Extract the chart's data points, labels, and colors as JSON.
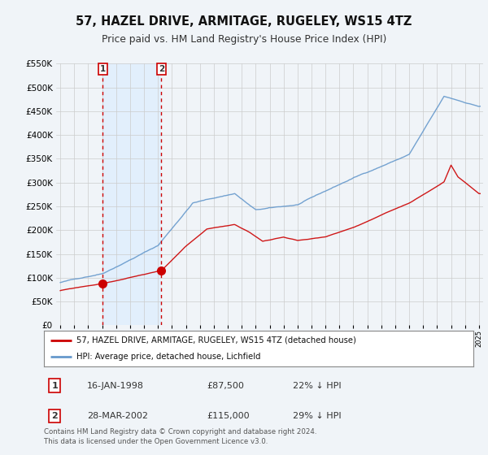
{
  "title": "57, HAZEL DRIVE, ARMITAGE, RUGELEY, WS15 4TZ",
  "subtitle": "Price paid vs. HM Land Registry's House Price Index (HPI)",
  "legend_label_red": "57, HAZEL DRIVE, ARMITAGE, RUGELEY, WS15 4TZ (detached house)",
  "legend_label_blue": "HPI: Average price, detached house, Lichfield",
  "footer": "Contains HM Land Registry data © Crown copyright and database right 2024.\nThis data is licensed under the Open Government Licence v3.0.",
  "sale1_date": "16-JAN-1998",
  "sale1_price": "£87,500",
  "sale1_hpi": "22% ↓ HPI",
  "sale2_date": "28-MAR-2002",
  "sale2_price": "£115,000",
  "sale2_hpi": "29% ↓ HPI",
  "sale1_x": 1998.04,
  "sale1_y": 87500,
  "sale2_x": 2002.24,
  "sale2_y": 115000,
  "vline1_x": 1998.04,
  "vline2_x": 2002.24,
  "ylim": [
    0,
    550000
  ],
  "xlim_left": 1994.7,
  "xlim_right": 2025.3,
  "red_color": "#cc0000",
  "blue_color": "#6699cc",
  "shade_color": "#ddeeff",
  "background_color": "#f0f4f8",
  "plot_bg_color": "#f0f4f8",
  "grid_color": "#cccccc",
  "title_fontsize": 10.5,
  "subtitle_fontsize": 9.0
}
